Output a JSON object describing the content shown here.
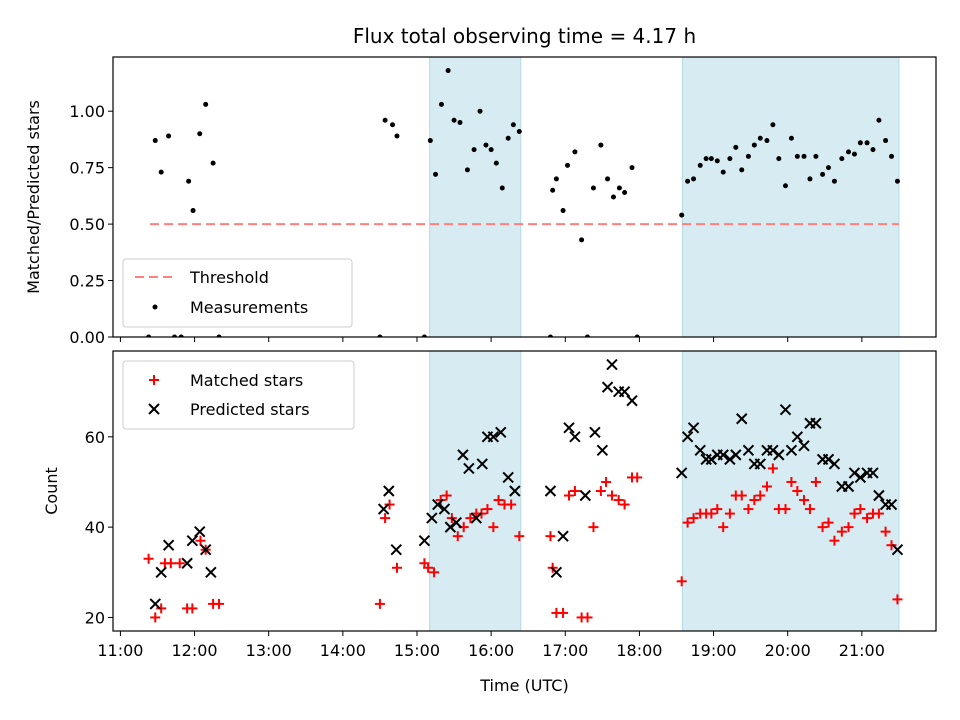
{
  "title": "Flux total observing time = 4.17 h",
  "xlabel": "Time (UTC)",
  "xticks": [
    "11:00",
    "12:00",
    "13:00",
    "14:00",
    "15:00",
    "16:00",
    "17:00",
    "18:00",
    "19:00",
    "20:00",
    "21:00"
  ],
  "xtick_hours": [
    11,
    12,
    13,
    14,
    15,
    16,
    17,
    18,
    19,
    20,
    21
  ],
  "xlim_hours": [
    10.9,
    22.0
  ],
  "shaded_intervals_hours": [
    [
      15.17,
      16.4
    ],
    [
      18.58,
      21.5
    ]
  ],
  "colors": {
    "shade": "#add8e6",
    "threshold": "#ff7f7f",
    "measurement": "#000000",
    "matched": "#ff0000",
    "predicted": "#000000"
  },
  "chart_data": [
    {
      "type": "scatter",
      "ylabel": "Matched/Predicted stars",
      "ylim": [
        0,
        1.24
      ],
      "yticks": [
        "0.00",
        "0.25",
        "0.50",
        "0.75",
        "1.00"
      ],
      "ytick_values": [
        0,
        0.25,
        0.5,
        0.75,
        1.0
      ],
      "legend": {
        "placement": "lower-left",
        "entries": [
          "Threshold",
          "Measurements"
        ]
      },
      "threshold": {
        "name": "Threshold",
        "value": 0.5,
        "x_range": [
          11.4,
          21.5
        ]
      },
      "series": [
        {
          "name": "Measurements",
          "x": [
            11.38,
            11.47,
            11.55,
            11.65,
            11.73,
            11.82,
            11.92,
            11.98,
            12.07,
            12.15,
            12.25,
            12.33,
            14.5,
            14.57,
            14.67,
            14.73,
            15.1,
            15.18,
            15.25,
            15.33,
            15.42,
            15.5,
            15.58,
            15.68,
            15.77,
            15.85,
            15.93,
            16.0,
            16.07,
            16.15,
            16.23,
            16.3,
            16.38,
            16.8,
            16.83,
            16.88,
            16.97,
            17.03,
            17.13,
            17.22,
            17.3,
            17.38,
            17.48,
            17.57,
            17.65,
            17.73,
            17.8,
            17.9,
            17.97,
            18.57,
            18.65,
            18.73,
            18.82,
            18.9,
            18.97,
            19.05,
            19.13,
            19.22,
            19.3,
            19.38,
            19.47,
            19.55,
            19.63,
            19.72,
            19.8,
            19.88,
            19.97,
            20.05,
            20.13,
            20.22,
            20.3,
            20.38,
            20.47,
            20.55,
            20.63,
            20.73,
            20.82,
            20.9,
            20.98,
            21.07,
            21.15,
            21.23,
            21.32,
            21.4,
            21.48
          ],
          "y": [
            0,
            0.87,
            0.73,
            0.89,
            0,
            0,
            0.69,
            0.56,
            0.9,
            1.03,
            0.77,
            0,
            0,
            0.96,
            0.94,
            0.89,
            0,
            0.87,
            0.72,
            1.03,
            1.18,
            0.96,
            0.95,
            0.74,
            0.83,
            1.0,
            0.85,
            0.83,
            0.77,
            0.66,
            0.88,
            0.94,
            0.91,
            0,
            0.65,
            0.7,
            0.56,
            0.76,
            0.82,
            0.43,
            0,
            0.66,
            0.85,
            0.7,
            0.62,
            0.66,
            0.64,
            0.75,
            0,
            0.54,
            0.69,
            0.7,
            0.76,
            0.79,
            0.79,
            0.78,
            0.73,
            0.79,
            0.84,
            0.74,
            0.8,
            0.85,
            0.88,
            0.87,
            0.94,
            0.79,
            0.67,
            0.88,
            0.8,
            0.8,
            0.7,
            0.8,
            0.72,
            0.75,
            0.69,
            0.79,
            0.82,
            0.81,
            0.86,
            0.86,
            0.83,
            0.96,
            0.87,
            0.8,
            0.69
          ]
        }
      ]
    },
    {
      "type": "scatter",
      "ylabel": "Count",
      "ylim": [
        17,
        79
      ],
      "yticks": [
        "20",
        "40",
        "60"
      ],
      "ytick_values": [
        20,
        40,
        60
      ],
      "legend": {
        "placement": "top-left",
        "entries": [
          "Matched stars",
          "Predicted stars"
        ]
      },
      "series": [
        {
          "name": "Matched stars",
          "marker": "plus",
          "x": [
            11.38,
            11.47,
            11.55,
            11.6,
            11.68,
            11.8,
            11.9,
            11.97,
            12.08,
            12.15,
            12.25,
            12.33,
            14.5,
            14.57,
            14.63,
            14.73,
            15.1,
            15.15,
            15.23,
            15.32,
            15.4,
            15.47,
            15.55,
            15.63,
            15.72,
            15.8,
            15.87,
            15.95,
            16.03,
            16.1,
            16.18,
            16.27,
            16.38,
            16.8,
            16.83,
            16.88,
            16.97,
            17.05,
            17.13,
            17.22,
            17.3,
            17.38,
            17.48,
            17.55,
            17.63,
            17.72,
            17.8,
            17.9,
            17.97,
            18.57,
            18.65,
            18.73,
            18.82,
            18.9,
            18.97,
            19.05,
            19.13,
            19.22,
            19.3,
            19.38,
            19.47,
            19.55,
            19.63,
            19.72,
            19.8,
            19.88,
            19.97,
            20.05,
            20.13,
            20.22,
            20.3,
            20.38,
            20.47,
            20.55,
            20.63,
            20.73,
            20.82,
            20.9,
            20.98,
            21.07,
            21.15,
            21.23,
            21.32,
            21.4,
            21.48
          ],
          "y": [
            33,
            20,
            22,
            32,
            32,
            32,
            22,
            22,
            37,
            35,
            23,
            23,
            23,
            42,
            45,
            31,
            32,
            31,
            30,
            46,
            47,
            42,
            38,
            40,
            42,
            43,
            43,
            44,
            40,
            46,
            45,
            45,
            38,
            38,
            31,
            21,
            21,
            47,
            48,
            20,
            20,
            40,
            48,
            50,
            47,
            46,
            45,
            51,
            51,
            28,
            41,
            42,
            43,
            43,
            43,
            44,
            40,
            43,
            47,
            47,
            44,
            46,
            47,
            49,
            53,
            44,
            44,
            50,
            48,
            46,
            44,
            50,
            40,
            41,
            37,
            39,
            40,
            43,
            44,
            42,
            43,
            43,
            39,
            36,
            24
          ]
        },
        {
          "name": "Predicted stars",
          "marker": "x",
          "x": [
            11.47,
            11.55,
            11.65,
            11.9,
            11.97,
            12.07,
            12.15,
            12.22,
            14.55,
            14.62,
            14.72,
            15.1,
            15.2,
            15.28,
            15.37,
            15.45,
            15.53,
            15.62,
            15.7,
            15.8,
            15.88,
            15.95,
            16.03,
            16.13,
            16.23,
            16.32,
            16.8,
            16.88,
            16.97,
            17.05,
            17.13,
            17.27,
            17.4,
            17.5,
            17.57,
            17.63,
            17.72,
            17.8,
            17.9,
            18.57,
            18.65,
            18.73,
            18.82,
            18.9,
            18.97,
            19.05,
            19.13,
            19.22,
            19.3,
            19.38,
            19.47,
            19.55,
            19.63,
            19.72,
            19.8,
            19.88,
            19.97,
            20.05,
            20.13,
            20.22,
            20.3,
            20.38,
            20.47,
            20.55,
            20.63,
            20.73,
            20.82,
            20.9,
            20.98,
            21.07,
            21.15,
            21.23,
            21.32,
            21.4,
            21.48
          ],
          "y": [
            23,
            30,
            36,
            32,
            37,
            39,
            35,
            30,
            44,
            48,
            35,
            37,
            42,
            45,
            44,
            40,
            41,
            56,
            53,
            42,
            54,
            60,
            60,
            61,
            51,
            48,
            48,
            30,
            38,
            62,
            60,
            47,
            61,
            57,
            71,
            76,
            70,
            70,
            68,
            52,
            60,
            62,
            57,
            55,
            55,
            56,
            56,
            55,
            56,
            64,
            57,
            54,
            54,
            57,
            57,
            56,
            66,
            57,
            60,
            58,
            63,
            63,
            55,
            55,
            54,
            49,
            49,
            52,
            51,
            52,
            52,
            47,
            45,
            45,
            35
          ]
        }
      ]
    }
  ]
}
